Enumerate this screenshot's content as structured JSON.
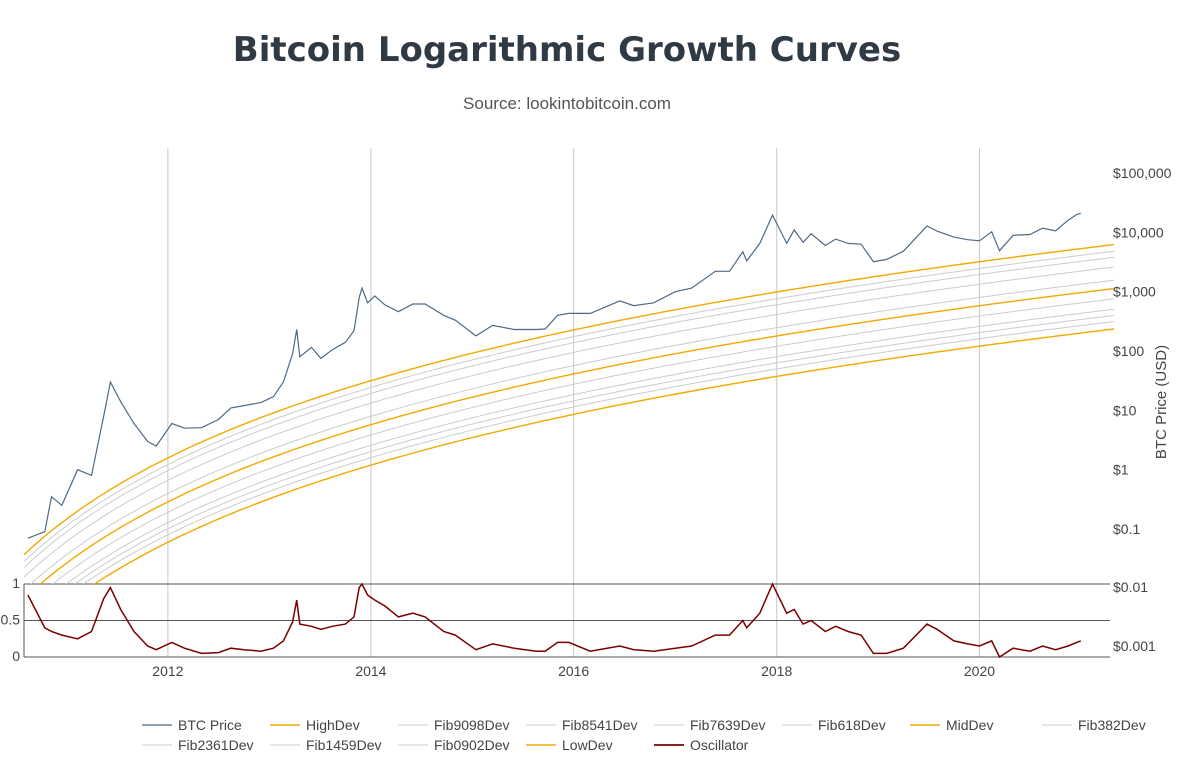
{
  "title": "Bitcoin Logarithmic Growth Curves",
  "subtitle": "Source: lookintobitcoin.com",
  "chart_data": {
    "type": "line",
    "title": "Bitcoin Logarithmic Growth Curves",
    "subtitle": "Source: lookintobitcoin.com",
    "ylabel": "BTC Price (USD)",
    "y_scale": "log",
    "ylim": [
      0.005,
      150000
    ],
    "xlim": [
      "2010-08-01",
      "2021-04-15"
    ],
    "x_ticks": [
      "2012",
      "2014",
      "2016",
      "2018",
      "2020"
    ],
    "y_ticks": [
      "$0.001",
      "$0.01",
      "$0.1",
      "$1",
      "$10",
      "$100",
      "$1,000",
      "$10,000",
      "$100,000"
    ],
    "y_tick_values": [
      0.001,
      0.01,
      0.1,
      1,
      10,
      100,
      1000,
      10000,
      100000
    ],
    "oscillator_ticks": [
      "0",
      "0.5",
      "1"
    ],
    "grid": true,
    "legend_position": "bottom",
    "colors": {
      "btc": "#4e6a85",
      "band": "#f2a900",
      "fib": "#cccccc",
      "oscillator": "#7a0000"
    },
    "series": [
      {
        "name": "BTC Price",
        "x": [
          "2010-08-15",
          "2010-10-15",
          "2010-11-08",
          "2010-12-15",
          "2011-02-10",
          "2011-04-01",
          "2011-05-15",
          "2011-06-08",
          "2011-07-15",
          "2011-09-01",
          "2011-10-20",
          "2011-11-20",
          "2012-01-15",
          "2012-03-01",
          "2012-05-01",
          "2012-07-01",
          "2012-08-15",
          "2012-10-01",
          "2012-12-01",
          "2013-01-15",
          "2013-02-20",
          "2013-03-25",
          "2013-04-09",
          "2013-04-20",
          "2013-06-01",
          "2013-07-05",
          "2013-08-15",
          "2013-10-01",
          "2013-11-01",
          "2013-11-20",
          "2013-11-30",
          "2013-12-20",
          "2014-01-15",
          "2014-02-20",
          "2014-04-10",
          "2014-06-01",
          "2014-07-15",
          "2014-09-20",
          "2014-11-01",
          "2015-01-14",
          "2015-03-15",
          "2015-06-01",
          "2015-08-20",
          "2015-09-20",
          "2015-11-04",
          "2015-12-15",
          "2016-03-01",
          "2016-06-15",
          "2016-08-05",
          "2016-10-15",
          "2017-01-01",
          "2017-03-01",
          "2017-05-25",
          "2017-07-15",
          "2017-09-01",
          "2017-09-15",
          "2017-11-01",
          "2017-12-17",
          "2018-02-06",
          "2018-03-05",
          "2018-04-06",
          "2018-05-05",
          "2018-06-25",
          "2018-08-01",
          "2018-09-15",
          "2018-11-01",
          "2018-12-15",
          "2019-02-01",
          "2019-04-02",
          "2019-06-26",
          "2019-08-01",
          "2019-10-01",
          "2019-11-20",
          "2020-01-01",
          "2020-02-14",
          "2020-03-13",
          "2020-05-01",
          "2020-07-01",
          "2020-08-15",
          "2020-10-01",
          "2020-11-15",
          "2020-12-16",
          "2020-12-31"
        ],
        "y": [
          0.07,
          0.09,
          0.35,
          0.25,
          1.0,
          0.8,
          8,
          30,
          14,
          6,
          3,
          2.5,
          6,
          5,
          5.1,
          7,
          11,
          12,
          13.5,
          17,
          30,
          90,
          230,
          80,
          115,
          75,
          105,
          140,
          220,
          800,
          1150,
          650,
          850,
          600,
          460,
          620,
          620,
          400,
          330,
          180,
          270,
          230,
          230,
          235,
          400,
          430,
          430,
          700,
          580,
          650,
          1000,
          1150,
          2200,
          2200,
          4700,
          3300,
          6500,
          19500,
          6500,
          11000,
          6800,
          9500,
          6000,
          7700,
          6500,
          6300,
          3200,
          3500,
          4800,
          12800,
          10500,
          8300,
          7500,
          7200,
          10200,
          4900,
          8900,
          9200,
          11800,
          10600,
          16000,
          20000,
          21000
        ]
      },
      {
        "name": "Oscillator",
        "x": [
          "2010-08-15",
          "2010-10-15",
          "2010-11-08",
          "2010-12-15",
          "2011-02-10",
          "2011-04-01",
          "2011-05-15",
          "2011-06-08",
          "2011-07-15",
          "2011-09-01",
          "2011-10-20",
          "2011-11-20",
          "2012-01-15",
          "2012-03-01",
          "2012-05-01",
          "2012-07-01",
          "2012-08-15",
          "2012-10-01",
          "2012-12-01",
          "2013-01-15",
          "2013-02-20",
          "2013-03-25",
          "2013-04-09",
          "2013-04-20",
          "2013-06-01",
          "2013-07-05",
          "2013-08-15",
          "2013-10-01",
          "2013-11-01",
          "2013-11-20",
          "2013-11-30",
          "2013-12-20",
          "2014-01-15",
          "2014-02-20",
          "2014-04-10",
          "2014-06-01",
          "2014-07-15",
          "2014-09-20",
          "2014-11-01",
          "2015-01-14",
          "2015-03-15",
          "2015-06-01",
          "2015-08-20",
          "2015-09-20",
          "2015-11-04",
          "2015-12-15",
          "2016-03-01",
          "2016-06-15",
          "2016-08-05",
          "2016-10-15",
          "2017-01-01",
          "2017-03-01",
          "2017-05-25",
          "2017-07-15",
          "2017-09-01",
          "2017-09-15",
          "2017-11-01",
          "2017-12-17",
          "2018-02-06",
          "2018-03-05",
          "2018-04-06",
          "2018-05-05",
          "2018-06-25",
          "2018-08-01",
          "2018-09-15",
          "2018-11-01",
          "2018-12-15",
          "2019-02-01",
          "2019-04-02",
          "2019-06-26",
          "2019-08-01",
          "2019-10-01",
          "2019-11-20",
          "2020-01-01",
          "2020-02-14",
          "2020-03-13",
          "2020-05-01",
          "2020-07-01",
          "2020-08-15",
          "2020-10-01",
          "2020-11-15",
          "2020-12-16",
          "2020-12-31"
        ],
        "y": [
          0.85,
          0.4,
          0.35,
          0.3,
          0.25,
          0.35,
          0.8,
          0.95,
          0.65,
          0.35,
          0.15,
          0.1,
          0.2,
          0.12,
          0.05,
          0.06,
          0.12,
          0.1,
          0.08,
          0.12,
          0.22,
          0.48,
          0.78,
          0.45,
          0.42,
          0.38,
          0.42,
          0.45,
          0.55,
          0.95,
          1.0,
          0.85,
          0.78,
          0.7,
          0.55,
          0.6,
          0.55,
          0.35,
          0.3,
          0.1,
          0.18,
          0.12,
          0.08,
          0.08,
          0.2,
          0.2,
          0.08,
          0.15,
          0.1,
          0.08,
          0.12,
          0.15,
          0.3,
          0.3,
          0.5,
          0.4,
          0.6,
          1.0,
          0.6,
          0.65,
          0.45,
          0.5,
          0.35,
          0.42,
          0.35,
          0.3,
          0.05,
          0.05,
          0.12,
          0.45,
          0.38,
          0.22,
          0.18,
          0.15,
          0.22,
          0.0,
          0.12,
          0.08,
          0.15,
          0.1,
          0.15,
          0.2,
          0.22
        ]
      },
      {
        "name": "HighDev",
        "role": "band",
        "mult": 6.5
      },
      {
        "name": "Fib9098Dev",
        "role": "fib",
        "mult": 5.6
      },
      {
        "name": "Fib8541Dev",
        "role": "fib",
        "mult": 4.9
      },
      {
        "name": "Fib7639Dev",
        "role": "fib",
        "mult": 3.95
      },
      {
        "name": "Fib618Dev",
        "role": "fib",
        "mult": 2.95
      },
      {
        "name": "MidDev",
        "role": "band",
        "mult": 2.45
      },
      {
        "name": "Fib382Dev",
        "role": "fib",
        "mult": 1.95
      },
      {
        "name": "Fib2361Dev",
        "role": "fib",
        "mult": 1.55
      },
      {
        "name": "Fib1459Dev",
        "role": "fib",
        "mult": 1.35
      },
      {
        "name": "Fib0902Dev",
        "role": "fib",
        "mult": 1.18
      },
      {
        "name": "LowDev",
        "role": "band",
        "mult": 1.0
      }
    ],
    "legend": [
      "BTC Price",
      "HighDev",
      "Fib9098Dev",
      "Fib8541Dev",
      "Fib7639Dev",
      "Fib618Dev",
      "MidDev",
      "Fib382Dev",
      "Fib2361Dev",
      "Fib1459Dev",
      "Fib0902Dev",
      "LowDev",
      "Oscillator"
    ]
  }
}
